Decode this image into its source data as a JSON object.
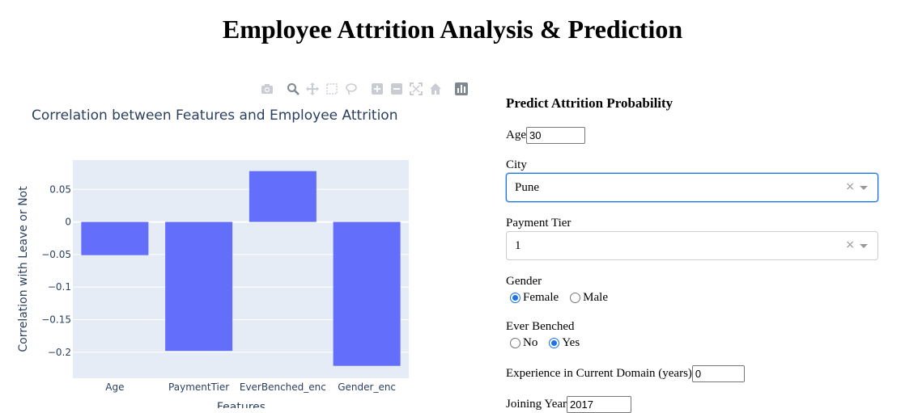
{
  "page": {
    "title": "Employee Attrition Analysis & Prediction"
  },
  "modebar": {
    "icons": [
      "camera-icon",
      "zoom-icon",
      "pan-icon",
      "box-select-icon",
      "lasso-select-icon",
      "zoom-in-icon",
      "zoom-out-icon",
      "autoscale-icon",
      "reset-axes-icon",
      "plotly-logo-icon"
    ]
  },
  "chart_data": {
    "type": "bar",
    "title": "Correlation between Features and Employee Attrition",
    "categories": [
      "Age",
      "PaymentTier",
      "EverBenched_enc",
      "Gender_enc"
    ],
    "values": [
      -0.051,
      -0.198,
      0.078,
      -0.221
    ],
    "xlabel": "Features",
    "ylabel": "Correlation with Leave or Not",
    "ylim": [
      -0.24,
      0.095
    ],
    "yticks": [
      0.05,
      0,
      -0.05,
      -0.1,
      -0.15,
      -0.2
    ],
    "ytick_labels": [
      "0.05",
      "0",
      "−0.05",
      "−0.1",
      "−0.15",
      "−0.2"
    ],
    "bar_color": "#636efa",
    "plot_bg": "#e5ecf6",
    "grid": true
  },
  "form": {
    "heading": "Predict Attrition Probability",
    "age": {
      "label": "Age",
      "value": "30"
    },
    "city": {
      "label": "City",
      "value": "Pune",
      "clear": "×"
    },
    "payment_tier": {
      "label": "Payment Tier",
      "value": "1",
      "clear": "×"
    },
    "gender": {
      "label": "Gender",
      "options": [
        "Female",
        "Male"
      ],
      "selected": "Female"
    },
    "ever_benched": {
      "label": "Ever Benched",
      "options": [
        "No",
        "Yes"
      ],
      "selected": "Yes"
    },
    "experience": {
      "label": "Experience in Current Domain (years)",
      "value": "0"
    },
    "joining_year": {
      "label": "Joining Year",
      "value": "2017"
    }
  }
}
